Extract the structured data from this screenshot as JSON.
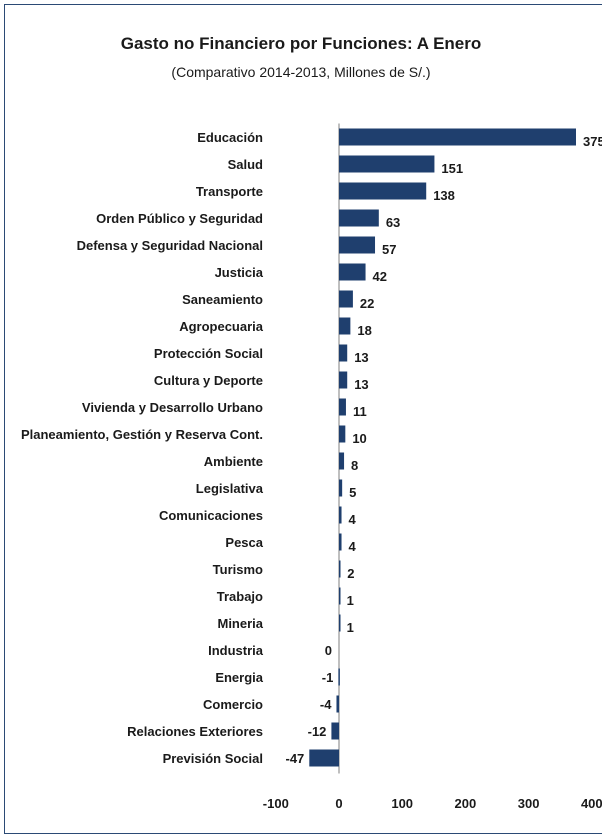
{
  "chart_data": {
    "type": "bar",
    "orientation": "horizontal",
    "title": "Gasto no Financiero por Funciones: A Enero",
    "subtitle": "(Comparativo 2014-2013, Millones de S/.)",
    "categories": [
      "Educación",
      "Salud",
      "Transporte",
      "Orden Público y Seguridad",
      "Defensa y Seguridad Nacional",
      "Justicia",
      "Saneamiento",
      "Agropecuaria",
      "Protección Social",
      "Cultura y Deporte",
      "Vivienda y Desarrollo Urbano",
      "Planeamiento, Gestión y Reserva Cont.",
      "Ambiente",
      "Legislativa",
      "Comunicaciones",
      "Pesca",
      "Turismo",
      "Trabajo",
      "Mineria",
      "Industria",
      "Energia",
      "Comercio",
      "Relaciones Exteriores",
      "Previsión Social"
    ],
    "values": [
      375,
      151,
      138,
      63,
      57,
      42,
      22,
      18,
      13,
      13,
      11,
      10,
      8,
      5,
      4,
      4,
      2,
      1,
      1,
      0,
      -1,
      -4,
      -12,
      -47
    ],
    "value_labels": [
      "375",
      "151",
      "138",
      "63",
      "57",
      "42",
      "22",
      "18",
      "13",
      "13",
      "11",
      "10",
      "8",
      "5",
      "4",
      "4",
      "2",
      "1",
      "1",
      "0",
      "-1",
      "-4",
      "-12",
      "-47"
    ],
    "xlim": [
      -100,
      400
    ],
    "x_ticks": [
      "-100",
      "0",
      "100",
      "200",
      "300",
      "400"
    ],
    "grid": false,
    "bar_color": "#1f3f6e"
  }
}
